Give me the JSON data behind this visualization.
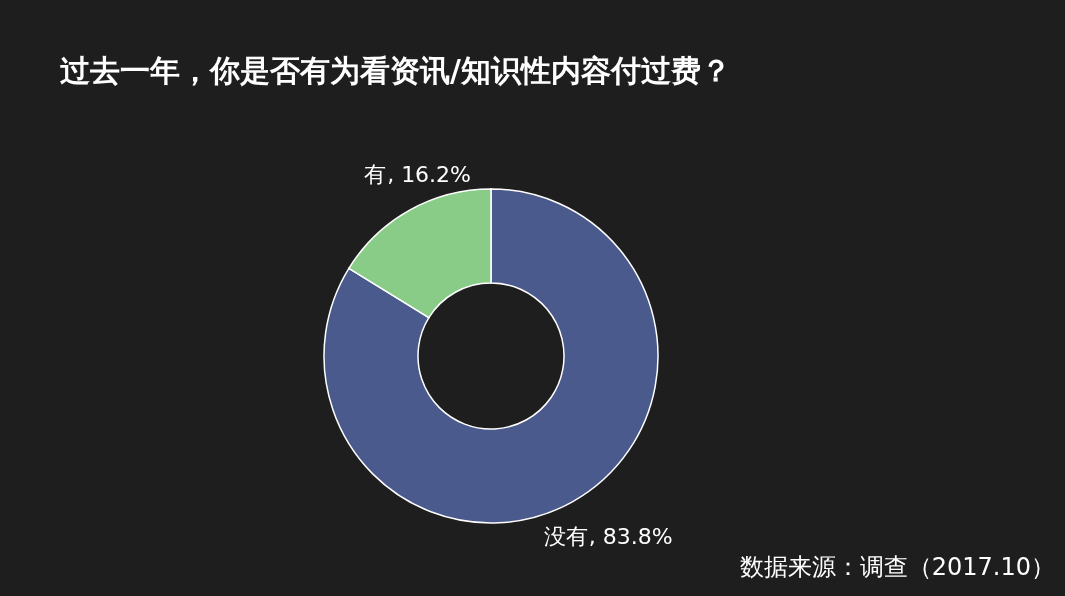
{
  "chart_data": {
    "type": "donut",
    "title": "过去一年，你是否有为看资讯/知识性内容付过费？",
    "categories": [
      "没有",
      "有"
    ],
    "values": [
      83.8,
      16.2
    ],
    "colors": [
      "#4a5a8c",
      "#88cc88"
    ],
    "value_labels": [
      ", 83.8%",
      ", 16.2%"
    ],
    "annotations": [
      "数据来源：调查（2017.10）"
    ]
  }
}
